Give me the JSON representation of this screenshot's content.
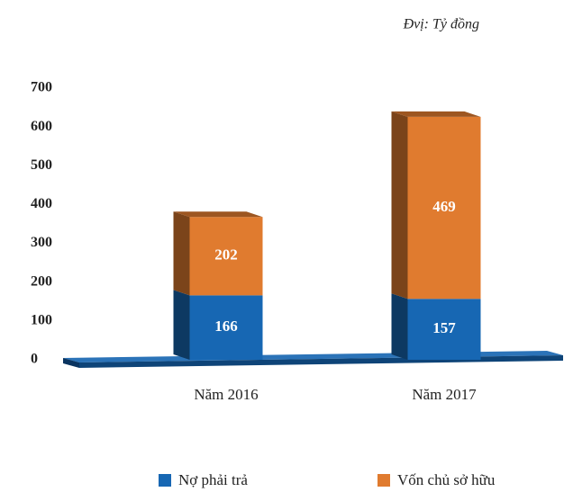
{
  "chart_data": {
    "type": "bar",
    "stacked": true,
    "subtitle": "Đvị: Tỷ đồng",
    "categories": [
      "Năm 2016",
      "Năm 2017"
    ],
    "series": [
      {
        "name": "Nợ phải trả",
        "color": "#1767b3",
        "values": [
          166,
          157
        ]
      },
      {
        "name": "Vốn chủ sở hữu",
        "color": "#e07b2f",
        "values": [
          202,
          469
        ]
      }
    ],
    "ylim": [
      0,
      700
    ],
    "yticks": [
      0,
      100,
      200,
      300,
      400,
      500,
      600,
      700
    ],
    "grid": false
  }
}
